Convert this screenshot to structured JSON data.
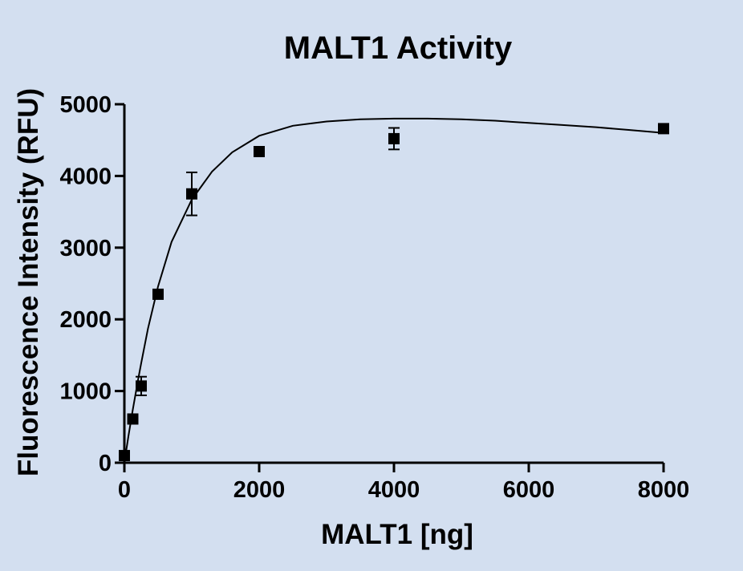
{
  "chart_data": {
    "type": "scatter",
    "title": "MALT1 Activity",
    "xlabel": "MALT1 [ng]",
    "ylabel": "Fluorescence Intensity (RFU)",
    "xlim": [
      0,
      8000
    ],
    "ylim": [
      0,
      5000
    ],
    "xticks": [
      0,
      2000,
      4000,
      6000,
      8000
    ],
    "yticks": [
      0,
      1000,
      2000,
      3000,
      4000,
      5000
    ],
    "grid": false,
    "legend": "none",
    "colors": {
      "background": "#d3dff0",
      "marks": "#000000"
    },
    "series": [
      {
        "marker": "square",
        "points": [
          {
            "x": 0,
            "y": 100,
            "err": 30
          },
          {
            "x": 125,
            "y": 610,
            "err": 40
          },
          {
            "x": 250,
            "y": 1070,
            "err": 130
          },
          {
            "x": 500,
            "y": 2350,
            "err": 40
          },
          {
            "x": 1000,
            "y": 3750,
            "err": 300
          },
          {
            "x": 2000,
            "y": 4340,
            "err": 40
          },
          {
            "x": 4000,
            "y": 4520,
            "err": 150
          },
          {
            "x": 8000,
            "y": 4660,
            "err": 40
          }
        ]
      }
    ],
    "fit_curve": {
      "x": [
        0,
        60,
        125,
        200,
        250,
        350,
        500,
        700,
        1000,
        1300,
        1600,
        2000,
        2500,
        3000,
        3500,
        4000,
        4500,
        5000,
        5500,
        6000,
        6500,
        7000,
        7500,
        8000
      ],
      "y": [
        0,
        370,
        740,
        1140,
        1390,
        1870,
        2460,
        3080,
        3670,
        4060,
        4330,
        4560,
        4700,
        4760,
        4790,
        4800,
        4800,
        4790,
        4770,
        4740,
        4710,
        4680,
        4640,
        4600
      ]
    }
  }
}
